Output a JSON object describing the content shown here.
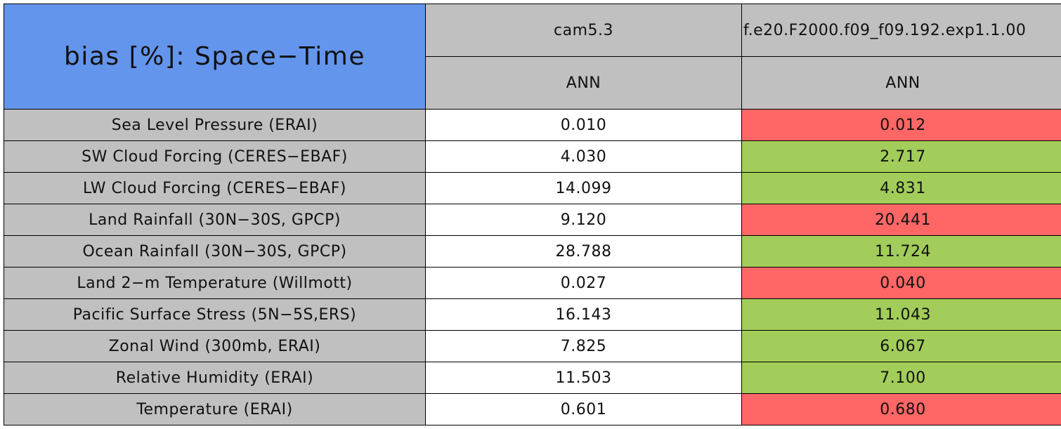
{
  "header": {
    "title": "bias [%]: Space−Time",
    "title_color": "#6495ed",
    "header_color": "#c0c0c0",
    "columns": [
      {
        "name": "cam5.3",
        "season": "ANN"
      },
      {
        "name": "f.e20.F2000.f09_f09.192.exp1.1.00",
        "season": "ANN"
      }
    ]
  },
  "table": {
    "label_color": "#c0c0c0",
    "rows": [
      {
        "label": "Sea Level Pressure (ERAI)",
        "values": [
          "0.010",
          "0.012"
        ],
        "colors": [
          "#ffffff",
          "#ff6666"
        ]
      },
      {
        "label": "SW Cloud Forcing (CERES−EBAF)",
        "values": [
          "4.030",
          "2.717"
        ],
        "colors": [
          "#ffffff",
          "#a2cd5a"
        ]
      },
      {
        "label": "LW Cloud Forcing (CERES−EBAF)",
        "values": [
          "14.099",
          "4.831"
        ],
        "colors": [
          "#ffffff",
          "#a2cd5a"
        ]
      },
      {
        "label": "Land Rainfall (30N−30S, GPCP)",
        "values": [
          "9.120",
          "20.441"
        ],
        "colors": [
          "#ffffff",
          "#ff6666"
        ]
      },
      {
        "label": "Ocean Rainfall (30N−30S, GPCP)",
        "values": [
          "28.788",
          "11.724"
        ],
        "colors": [
          "#ffffff",
          "#a2cd5a"
        ]
      },
      {
        "label": "Land 2−m Temperature (Willmott)",
        "values": [
          "0.027",
          "0.040"
        ],
        "colors": [
          "#ffffff",
          "#ff6666"
        ]
      },
      {
        "label": "Pacific Surface Stress (5N−5S,ERS)",
        "values": [
          "16.143",
          "11.043"
        ],
        "colors": [
          "#ffffff",
          "#a2cd5a"
        ]
      },
      {
        "label": "Zonal Wind (300mb, ERAI)",
        "values": [
          "7.825",
          "6.067"
        ],
        "colors": [
          "#ffffff",
          "#a2cd5a"
        ]
      },
      {
        "label": "Relative Humidity (ERAI)",
        "values": [
          "11.503",
          "7.100"
        ],
        "colors": [
          "#ffffff",
          "#a2cd5a"
        ]
      },
      {
        "label": "Temperature (ERAI)",
        "values": [
          "0.601",
          "0.680"
        ],
        "colors": [
          "#ffffff",
          "#ff6666"
        ]
      }
    ]
  }
}
